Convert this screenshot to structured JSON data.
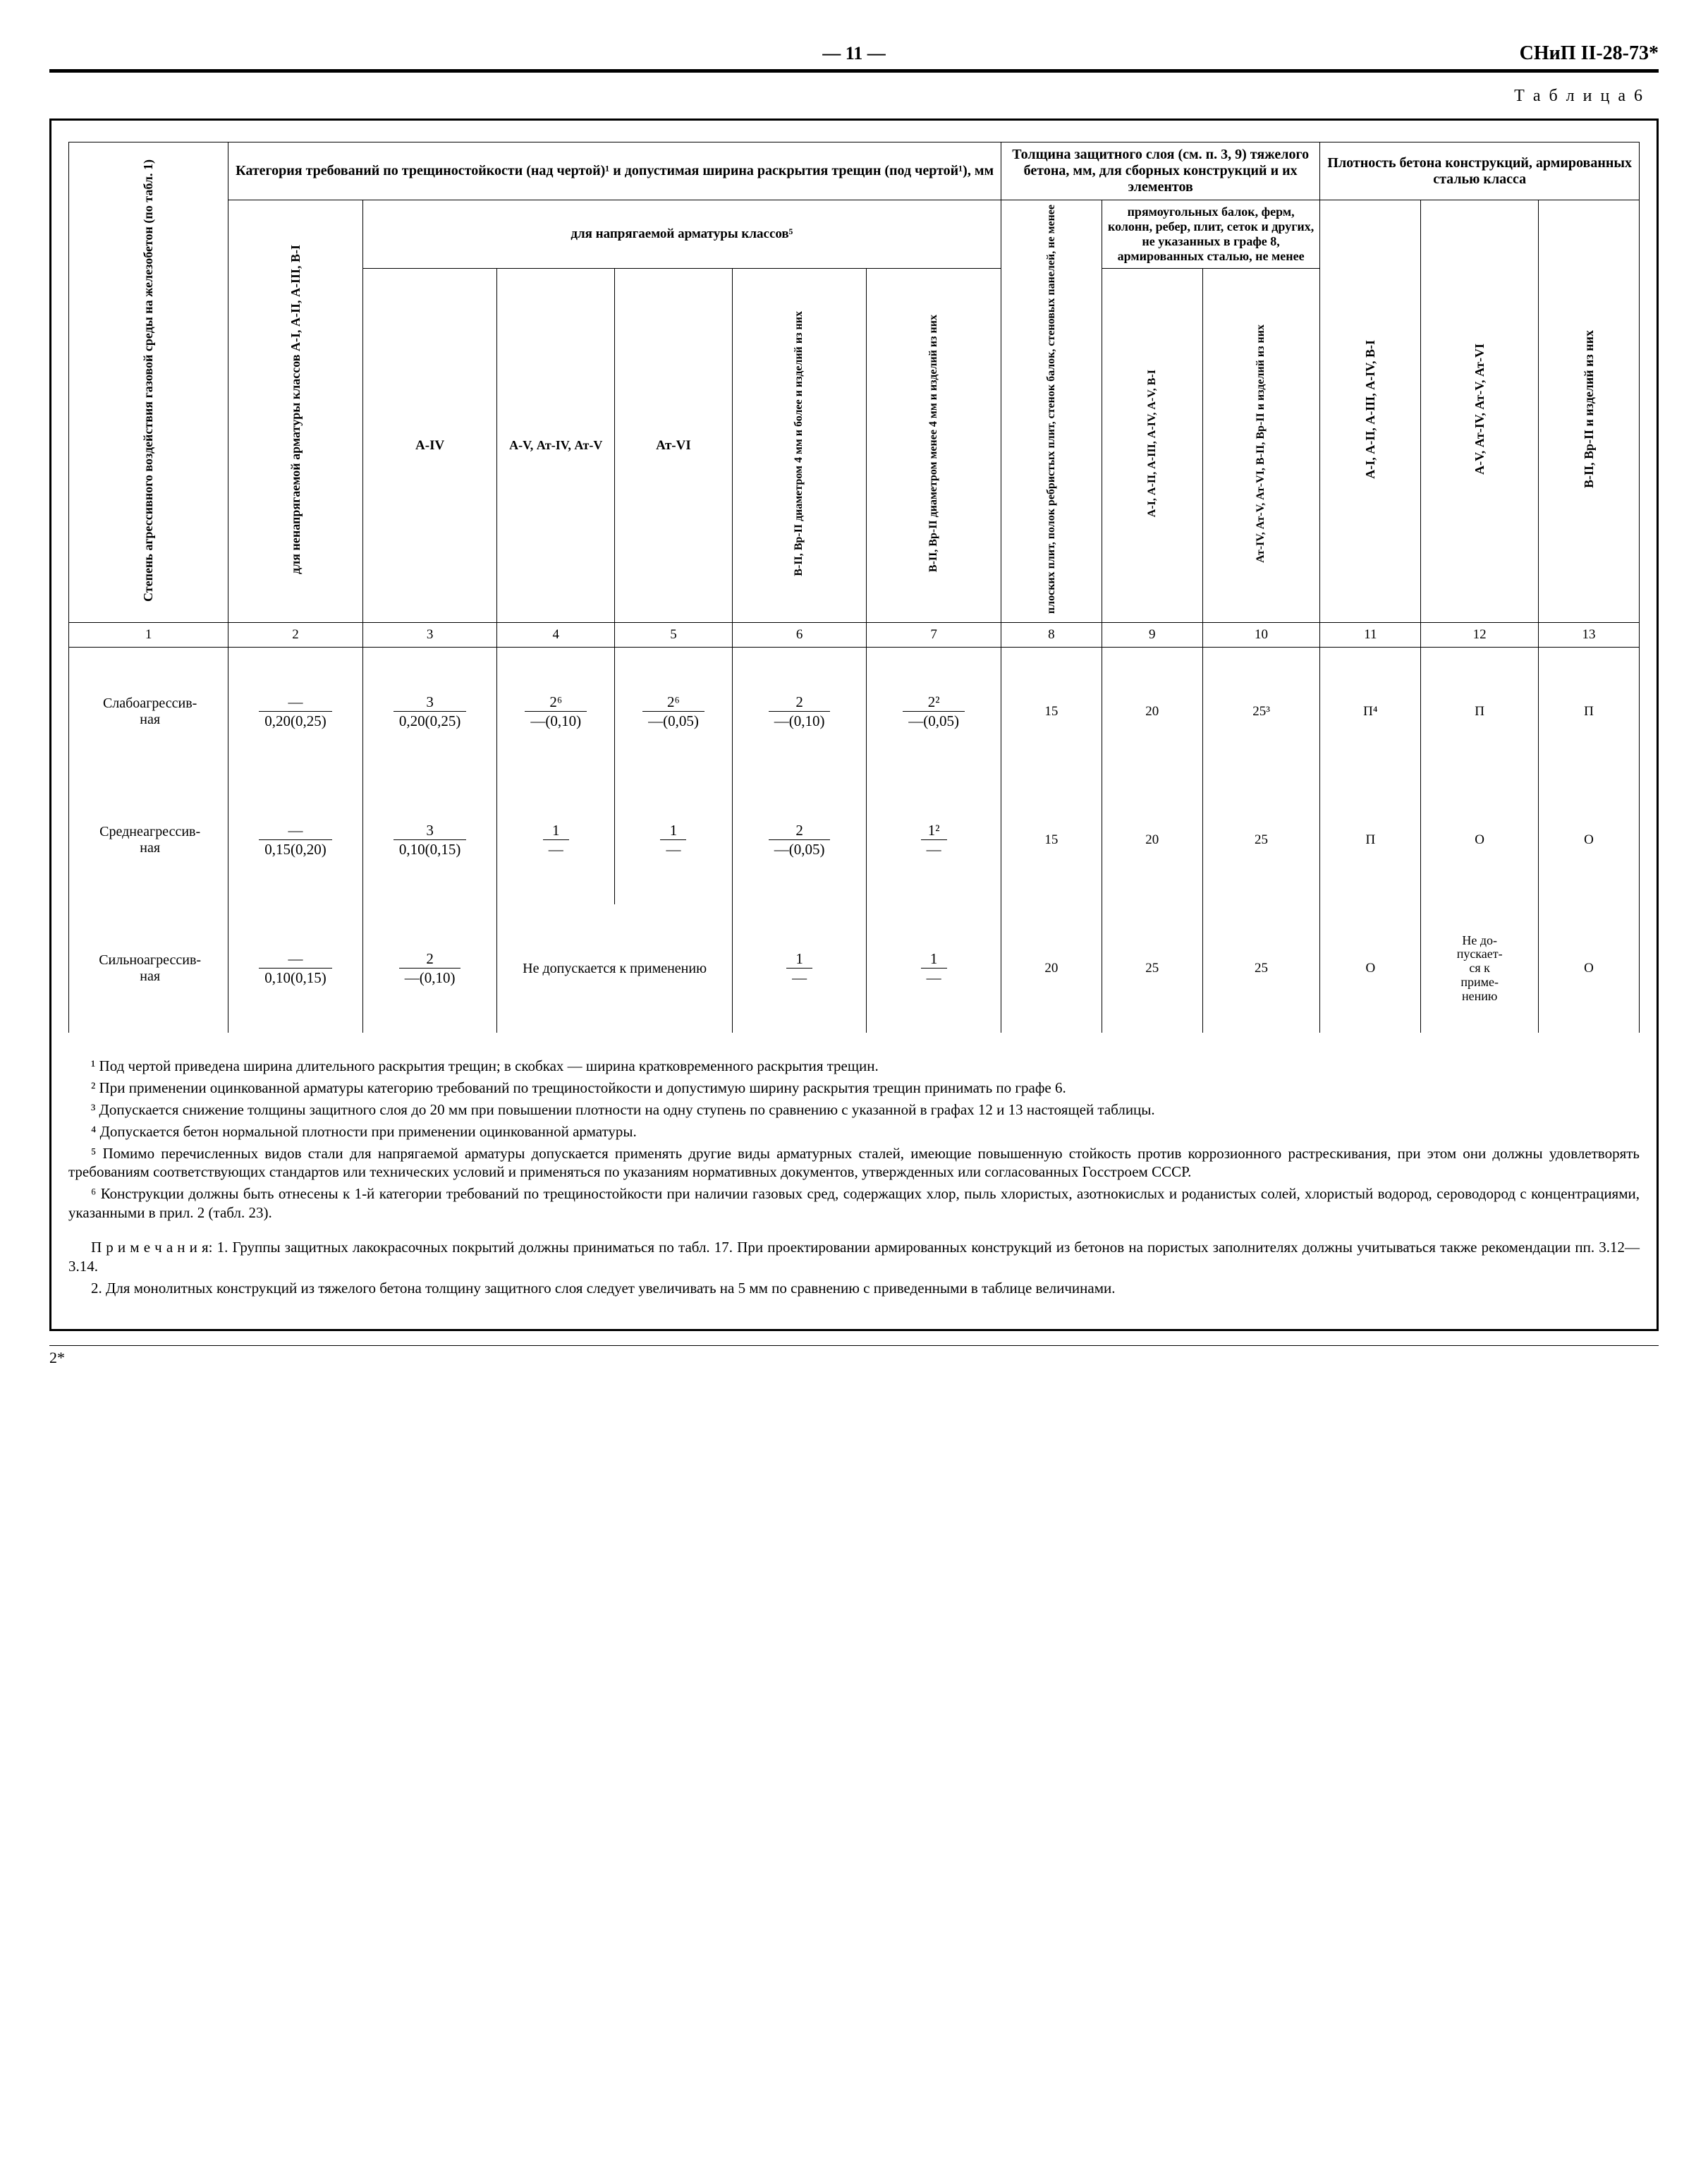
{
  "header": {
    "page_number": "— 11 —",
    "doc_code": "СНиП II-28-73*",
    "table_label": "Т а б л и ц а  6"
  },
  "table": {
    "col_widths_pct": [
      9.5,
      8,
      8,
      7,
      7,
      8,
      8,
      6,
      6,
      7,
      6,
      7,
      6
    ],
    "head": {
      "col1": "Степень агрессивного воздействия газовой среды на железобетон (по табл. 1)",
      "group_A": "Категория требований по трещиностойкости (над чертой)¹ и допустимая ширина раскрытия трещин (под чертой¹), мм",
      "col2": "для ненапрягаемой арматуры классов А-I, А-II, А-III, В-I",
      "group_A2": "для напрягаемой арматуры классов⁵",
      "c3": "А-IV",
      "c4": "А-V, Ат-IV, Ат-V",
      "c5": "Ат-VI",
      "c6": "В-II, Вр-II диаметром 4 мм и более и изделий из них",
      "c7": "В-II, Вр-II диаметром менее 4 мм и изделий из них",
      "group_B": "Толщина защитного слоя (см. п. 3, 9) тяжелого бетона, мм, для сборных конструкций и их элементов",
      "c8": "плоских плит, полок ребристых плит, стенок балок, стеновых панелей, не менее",
      "group_B2": "прямоугольных балок, ферм, колонн, ребер, плит, сеток и других, не указанных в графе 8, армированных сталью, не менее",
      "c9": "А-I, А-II, А-III, А-IV, А-V, В-I",
      "c10": "Ат-IV, Ат-V, Ат-VI, В-II, Вр-II и изделий из них",
      "group_C": "Плотность бетона конструкций, армированных сталью класса",
      "c11": "А-I, А-II, А-III, А-IV, В-I",
      "c12": "А-V, Ат-IV, Ат-V, Ат-VI",
      "c13": "В-II, Вр-II и изделий из них"
    },
    "colnums": [
      "1",
      "2",
      "3",
      "4",
      "5",
      "6",
      "7",
      "8",
      "9",
      "10",
      "11",
      "12",
      "13"
    ],
    "rows": [
      {
        "label": "Слабоагрессивная",
        "cells": [
          {
            "top": "—",
            "bot": "0,20(0,25)"
          },
          {
            "top": "3",
            "bot": "0,20(0,25)"
          },
          {
            "top": "2⁶",
            "bot": "—(0,10)"
          },
          {
            "top": "2⁶",
            "bot": "—(0,05)"
          },
          {
            "top": "2",
            "bot": "—(0,10)"
          },
          {
            "top": "2²",
            "bot": "—(0,05)"
          },
          "15",
          "20",
          "25³",
          "П⁴",
          "П",
          "П"
        ]
      },
      {
        "label": "Среднеагрессивная",
        "cells": [
          {
            "top": "—",
            "bot": "0,15(0,20)"
          },
          {
            "top": "3",
            "bot": "0,10(0,15)"
          },
          {
            "top": "1",
            "bot": "—"
          },
          {
            "top": "1",
            "bot": "—"
          },
          {
            "top": "2",
            "bot": "—(0,05)"
          },
          {
            "top": "1²",
            "bot": "—"
          },
          "15",
          "20",
          "25",
          "П",
          "О",
          "О"
        ]
      },
      {
        "label": "Сильноагрессивная",
        "cells": [
          {
            "top": "—",
            "bot": "0,10(0,15)"
          },
          {
            "top": "2",
            "bot": "—(0,10)"
          },
          {
            "colspan": 2,
            "text": "Не допускается к применению"
          },
          {
            "top": "1",
            "bot": "—"
          },
          {
            "top": "1",
            "bot": "—"
          },
          "20",
          "25",
          "25",
          "О",
          {
            "text": "Не допускается к применению",
            "small": true
          },
          "О"
        ]
      }
    ]
  },
  "footnotes": [
    "¹ Под чертой приведена ширина длительного раскрытия трещин; в скобках — ширина кратковременного раскрытия трещин.",
    "² При применении оцинкованной арматуры категорию требований по трещиностойкости и допустимую ширину раскрытия трещин принимать по графе 6.",
    "³ Допускается снижение толщины защитного слоя до 20 мм при повышении плотности на одну ступень по сравнению с указанной в графах 12 и 13 настоящей таблицы.",
    "⁴ Допускается бетон нормальной плотности при применении оцинкованной арматуры.",
    "⁵ Помимо перечисленных видов стали для напрягаемой арматуры допускается применять другие виды арматурных сталей, имеющие повышенную стойкость против коррозионного растрескивания, при этом они должны удовлетворять требованиям соответствующих стандартов или технических условий и применяться по указаниям нормативных документов, утвержденных или согласованных Госстроем СССР.",
    "⁶ Конструкции должны быть отнесены к 1-й категории требований по трещиностойкости при наличии газовых сред, содержащих хлор, пыль хлористых, азотнокислых и роданистых солей, хлористый водород, сероводород с концентрациями, указанными в прил. 2 (табл. 23)."
  ],
  "prim": [
    "П р и м е ч а н и я: 1. Группы защитных лакокрасочных покрытий должны приниматься по табл. 17. При проектировании армированных конструкций из бетонов на пористых заполнителях должны учитываться также рекомендации пп. 3.12—3.14.",
    "2. Для монолитных конструкций из тяжелого бетона толщину защитного слоя следует увеличивать на 5 мм по сравнению с приведенными в таблице величинами."
  ],
  "footer_mark": "2*"
}
